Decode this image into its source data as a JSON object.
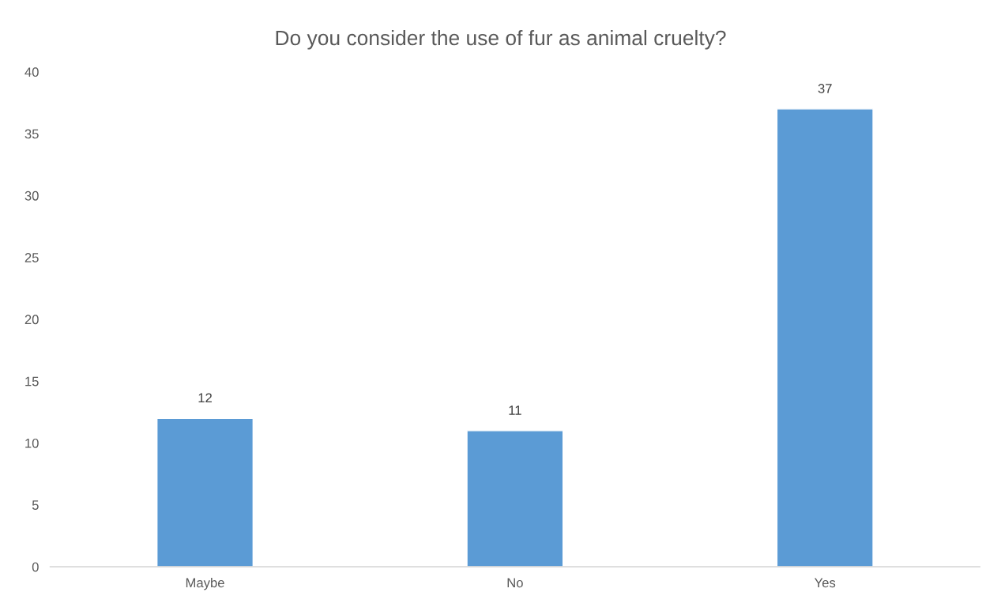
{
  "chart_data": {
    "type": "bar",
    "title": "Do you consider the use of fur as animal cruelty?",
    "categories": [
      "Maybe",
      "No",
      "Yes"
    ],
    "values": [
      12,
      11,
      37
    ],
    "color": "#5b9bd5",
    "ylim": [
      0,
      40
    ],
    "yticks": [
      0,
      5,
      10,
      15,
      20,
      25,
      30,
      35,
      40
    ],
    "grid": false,
    "data_labels": true
  }
}
